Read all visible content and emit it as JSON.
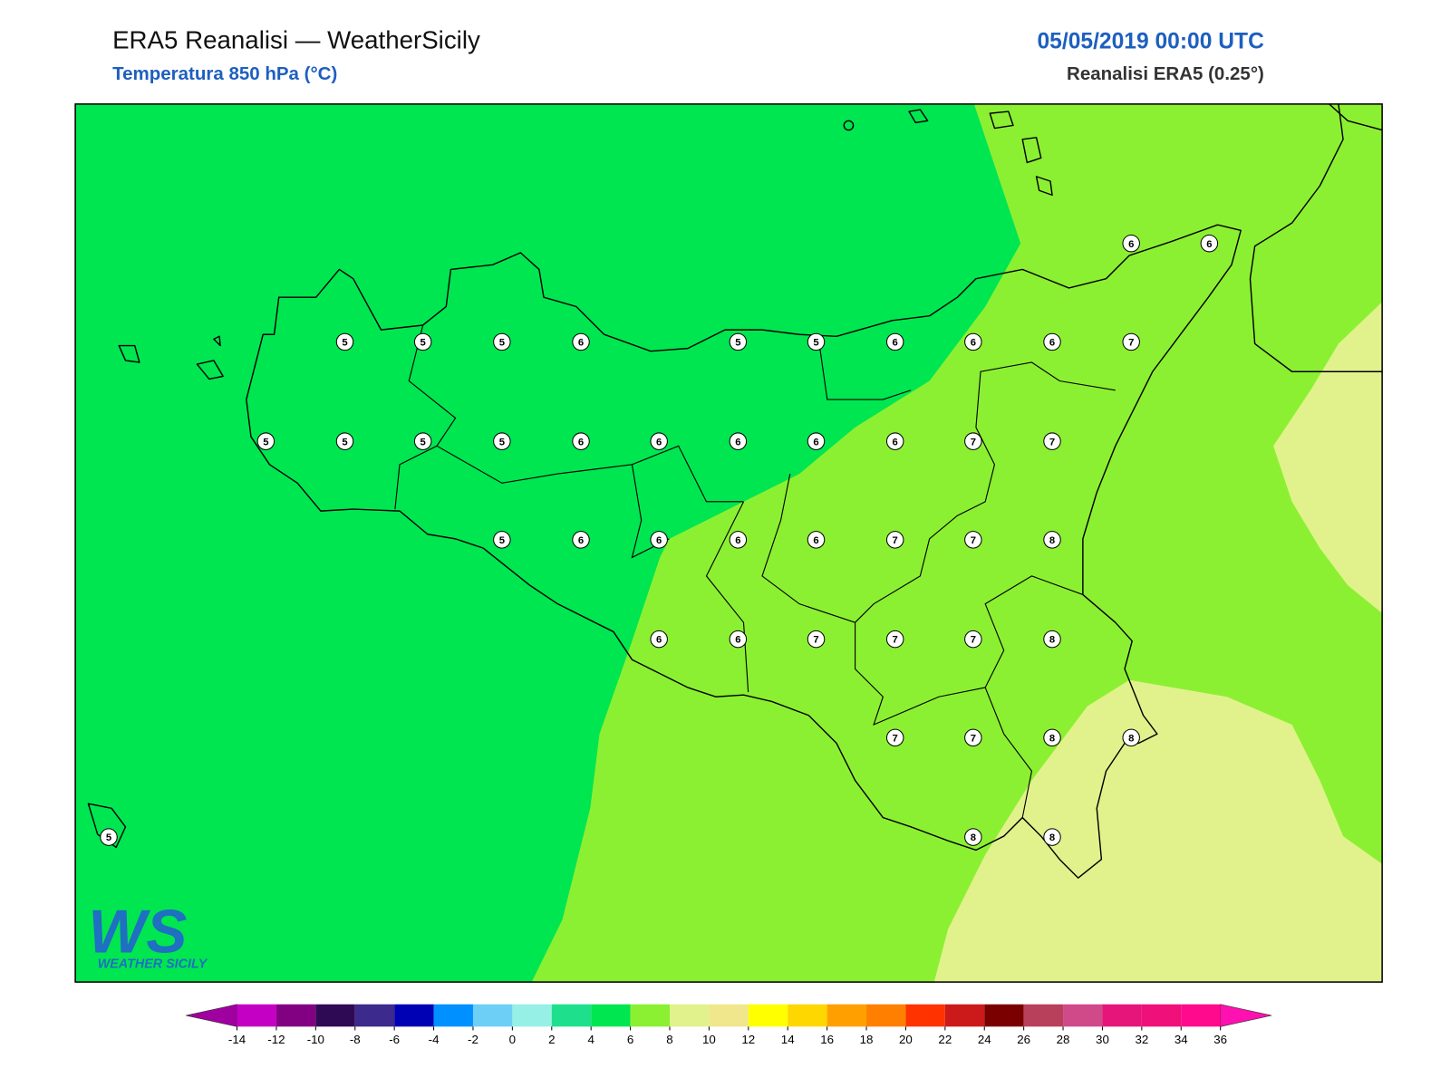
{
  "header": {
    "title": "ERA5 Reanalisi — WeatherSicily",
    "subtitle": "Temperatura 850 hPa (°C)",
    "date": "05/05/2019 00:00 UTC",
    "source": "Reanalisi ERA5 (0.25°)"
  },
  "stations": [
    6,
    6,
    5,
    5,
    5,
    6,
    5,
    5,
    6,
    6,
    6,
    7,
    5,
    5,
    5,
    5,
    6,
    6,
    6,
    6,
    6,
    7,
    7,
    5,
    6,
    6,
    6,
    6,
    7,
    7,
    8,
    6,
    6,
    7,
    7,
    7,
    8,
    7,
    7,
    8,
    8,
    5,
    8,
    8
  ],
  "colorbar": {
    "ticks": [
      -14,
      -12,
      -10,
      -8,
      -6,
      -4,
      -2,
      0,
      2,
      4,
      6,
      8,
      10,
      12,
      14,
      16,
      18,
      20,
      22,
      24,
      26,
      28,
      30,
      32,
      34,
      36
    ],
    "colors": [
      "#c400c4",
      "#820082",
      "#2e0a55",
      "#3c2a8c",
      "#0000b4",
      "#0090ff",
      "#6ecff6",
      "#96f0e6",
      "#1ee08c",
      "#00e650",
      "#8cf032",
      "#e1f28c",
      "#f0e68c",
      "#ffff00",
      "#ffd700",
      "#ffa000",
      "#ff7f00",
      "#ff3300",
      "#cc1a1a",
      "#7a0000",
      "#b8405a",
      "#d04a8a",
      "#e6157a",
      "#f0107a",
      "#ff0a8c"
    ],
    "under_color": "#a000a0",
    "over_color": "#ff10b0"
  },
  "logo": {
    "mark": "WS",
    "text": "WEATHER SICILY"
  }
}
